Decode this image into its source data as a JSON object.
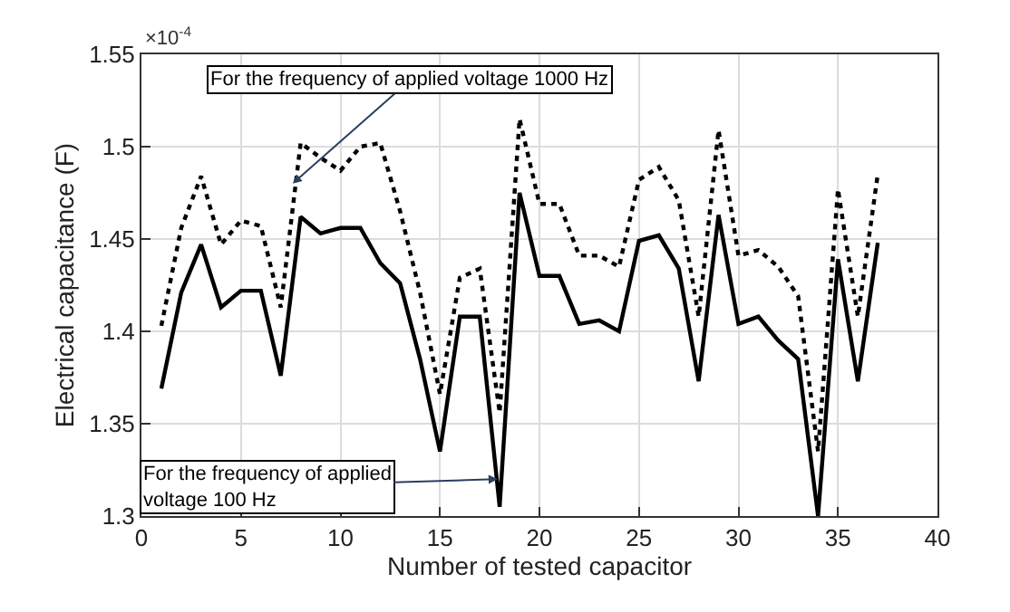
{
  "chart_data": {
    "type": "line",
    "xlabel": "Number of tested capacitor",
    "ylabel": "Electrical capacitance (F)",
    "x": [
      1,
      2,
      3,
      4,
      5,
      6,
      7,
      8,
      9,
      10,
      11,
      12,
      13,
      14,
      15,
      16,
      17,
      18,
      19,
      20,
      21,
      22,
      23,
      24,
      25,
      26,
      27,
      28,
      29,
      30,
      31,
      32,
      33,
      34,
      35,
      36,
      37
    ],
    "series": [
      {
        "color": "#000000",
        "line_style": "solid",
        "values": [
          1.369,
          1.421,
          1.447,
          1.413,
          1.422,
          1.422,
          1.376,
          1.462,
          1.453,
          1.456,
          1.456,
          1.437,
          1.426,
          1.385,
          1.335,
          1.408,
          1.408,
          1.305,
          1.475,
          1.43,
          1.43,
          1.404,
          1.406,
          1.4,
          1.449,
          1.452,
          1.434,
          1.373,
          1.463,
          1.404,
          1.408,
          1.395,
          1.385,
          1.3,
          1.439,
          1.373,
          1.448
        ]
      },
      {
        "color": "#000000",
        "line_style": "dotted",
        "values": [
          1.403,
          1.456,
          1.484,
          1.447,
          1.46,
          1.457,
          1.413,
          1.502,
          1.494,
          1.487,
          1.5,
          1.502,
          1.465,
          1.421,
          1.366,
          1.429,
          1.434,
          1.356,
          1.515,
          1.469,
          1.469,
          1.441,
          1.441,
          1.435,
          1.482,
          1.489,
          1.471,
          1.408,
          1.509,
          1.441,
          1.444,
          1.435,
          1.419,
          1.335,
          1.477,
          1.408,
          1.485
        ]
      }
    ],
    "xlim": [
      0,
      40
    ],
    "xticks": [
      0,
      5,
      10,
      15,
      20,
      25,
      30,
      35,
      40
    ],
    "ylim": [
      1.3,
      1.55
    ],
    "yticks": [
      1.3,
      1.35,
      1.4,
      1.45,
      1.5,
      1.55
    ],
    "grid": true,
    "annotations": [
      "×10$^{-4}$",
      {
        "text": "For the frequency of applied voltage 1000 Hz",
        "x": 7.6,
        "y": 1.48
      },
      {
        "text": "For the frequency of applied\nvoltage 100 Hz",
        "x": 17.9,
        "y": 1.32
      }
    ]
  }
}
